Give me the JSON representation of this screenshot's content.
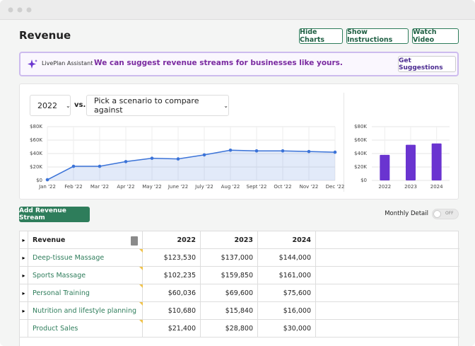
{
  "header": {
    "title": "Revenue",
    "buttons": [
      "Hide Charts",
      "Show Instructions",
      "Watch Video"
    ]
  },
  "assistant": {
    "label": "LivePlan Assistant",
    "message": "We can suggest revenue streams for businesses like yours.",
    "button": "Get Suggestions"
  },
  "controls": {
    "year": "2022",
    "vs": "vs.",
    "scenario": "Pick a scenario to compare against"
  },
  "chart_data": [
    {
      "type": "line",
      "categories": [
        "Jan '22",
        "Feb '22",
        "Mar '22",
        "Apr '22",
        "May '22",
        "June '22",
        "July '22",
        "Aug '22",
        "Sept '22",
        "Oct '22",
        "Nov '22",
        "Dec '22"
      ],
      "values": [
        1000,
        21000,
        21000,
        28000,
        33000,
        32000,
        38000,
        45000,
        44000,
        44000,
        43000,
        42000
      ],
      "color": "#3b73d8",
      "ylim": [
        0,
        80000
      ],
      "yticks": [
        {
          "value": 0,
          "label": "$0"
        },
        {
          "value": 20000,
          "label": "$20K"
        },
        {
          "value": 40000,
          "label": "$40K"
        },
        {
          "value": 60000,
          "label": "$60K"
        },
        {
          "value": 80000,
          "label": "$80K"
        }
      ],
      "grid": true
    },
    {
      "type": "bar",
      "categories": [
        "2022",
        "2023",
        "2024"
      ],
      "values": [
        38000,
        53000,
        55000
      ],
      "color": "#6a34d0",
      "ylim": [
        0,
        80000
      ],
      "yticks": [
        {
          "value": 0,
          "label": "$0"
        },
        {
          "value": 20000,
          "label": "$20K"
        },
        {
          "value": 40000,
          "label": "$40K"
        },
        {
          "value": 60000,
          "label": "$60K"
        },
        {
          "value": 80000,
          "label": "$80K"
        }
      ],
      "grid": true
    }
  ],
  "actions": {
    "add_button": "Add Revenue Stream",
    "monthly_detail": "Monthly Detail",
    "toggle": "OFF"
  },
  "table": {
    "columns": [
      "Revenue",
      "2022",
      "2023",
      "2024"
    ],
    "rows": [
      {
        "cells": [
          "Deep-tissue Massage",
          "$123,530",
          "$137,000",
          "$144,000"
        ],
        "expandable": true
      },
      {
        "cells": [
          "Sports Massage",
          "$102,235",
          "$159,850",
          "$161,000"
        ],
        "expandable": true
      },
      {
        "cells": [
          "Personal Training",
          "$60,036",
          "$69,600",
          "$75,600"
        ],
        "expandable": true
      },
      {
        "cells": [
          "Nutrition and lifestyle planning",
          "$10,680",
          "$15,840",
          "$16,000"
        ],
        "expandable": true
      },
      {
        "cells": [
          "Product Sales",
          "$21,400",
          "$28,800",
          "$30,000"
        ],
        "expandable": false
      }
    ]
  }
}
